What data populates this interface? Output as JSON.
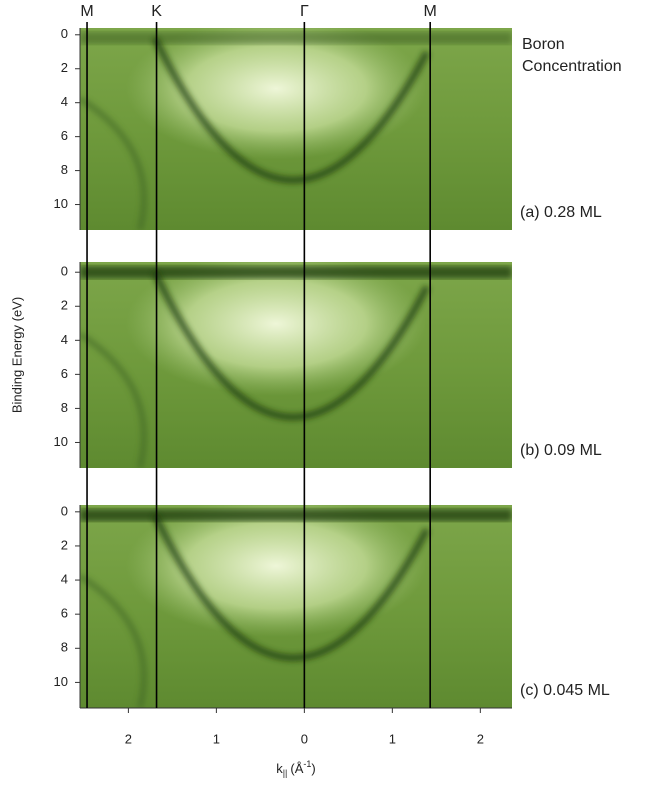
{
  "figure": {
    "y_label": "Binding Energy (eV)",
    "x_label": {
      "base": "k",
      "sub": "||",
      "open": "(Å",
      "sup": "-1",
      "close": ")"
    },
    "legend_title": [
      "Boron",
      "Concentration"
    ],
    "xlim": [
      -2.55,
      2.36
    ],
    "xticks": [
      {
        "value": -2,
        "label": "2"
      },
      {
        "value": -1,
        "label": "1"
      },
      0,
      1,
      2
    ],
    "symmetry_points": [
      {
        "label": "M",
        "k": -2.47
      },
      {
        "label": "K",
        "k": -1.68
      },
      {
        "label": "Γ",
        "k": 0
      },
      {
        "label": "M",
        "k": 1.43
      }
    ]
  },
  "chart_data": [
    {
      "type": "band-map",
      "label": "(a) 0.28 ML",
      "ylim": [
        -0.4,
        11.5
      ],
      "y_inverted": true,
      "yticks": [
        0,
        2,
        4,
        6,
        8,
        10
      ]
    },
    {
      "type": "band-map",
      "label": "(b) 0.09 ML",
      "ylim": [
        -0.6,
        11.5
      ],
      "y_inverted": true,
      "yticks": [
        0,
        2,
        4,
        6,
        8,
        10
      ]
    },
    {
      "type": "band-map",
      "label": "(c) 0.045 ML",
      "ylim": [
        -0.4,
        11.5
      ],
      "y_inverted": true,
      "yticks": [
        0,
        2,
        4,
        6,
        8,
        10
      ]
    }
  ]
}
